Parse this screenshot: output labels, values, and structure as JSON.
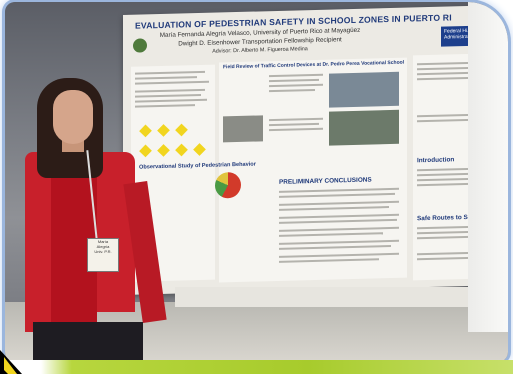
{
  "photo": {
    "description_label": "conference-photo"
  },
  "poster": {
    "title": "EVALUATION OF PEDESTRIAN SAFETY IN SCHOOL ZONES IN PUERTO RI",
    "authors_line1": "María Fernanda Alegría Velasco, University of Puerto Rico at Mayagüez",
    "authors_line2": "Dwight D. Eisenhower Transportation Fellowship Recipient",
    "authors_line3": "Advisor: Dr. Alberto M. Figueroa Medina",
    "fhwa_text": "Federal Hi... Administratio...",
    "section_field_review": "Field Review of Traffic Control Devices at Dr. Pedro Perea Vocational School",
    "section_observational": "Observational Study of Pedestrian Behavior",
    "section_preliminary": "PRELIMINARY CONCLUSIONS",
    "section_introduction": "Introduction",
    "section_safe_routes": "Safe Routes to Sc..."
  },
  "badge": {
    "line1": "María",
    "line2": "Alegría",
    "line3": "Univ. P.R."
  },
  "colors": {
    "poster_title": "#203a7a",
    "jacket": "#c8202b",
    "band": "#a7cb2c"
  }
}
